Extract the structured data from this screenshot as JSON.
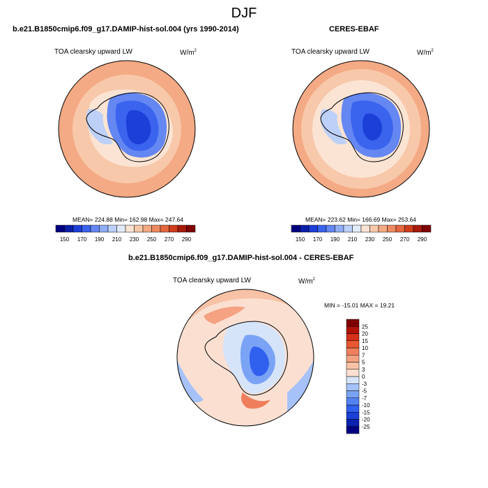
{
  "figure": {
    "title": "DJF"
  },
  "chart_data": [
    {
      "type": "heatmap",
      "title": "b.e21.B1850cmip6.f09_g17.DAMIP-hist-sol.004 (yrs 1990-2014)",
      "variable": "TOA clearsky upward LW",
      "units": "W/m",
      "units_sup": "2",
      "projection": "south-polar-stereographic",
      "stats": "MEAN= 224.88  Min= 162.98  Max= 247.64",
      "mean": 224.88,
      "min": 162.98,
      "max": 247.64,
      "colorbar": {
        "orientation": "horizontal",
        "levels": [
          150,
          160,
          170,
          180,
          190,
          200,
          210,
          220,
          230,
          240,
          250,
          260,
          270,
          280,
          290
        ],
        "tick_labels": [
          "150",
          "170",
          "190",
          "210",
          "230",
          "250",
          "270",
          "290"
        ],
        "colors": [
          "#00007f",
          "#0a1fa8",
          "#1c3fd8",
          "#3a63ee",
          "#6487f2",
          "#90aef6",
          "#bcd0f8",
          "#e2ebf8",
          "#fbe4d4",
          "#f8c8aa",
          "#f4aa84",
          "#ee8a62",
          "#e4673f",
          "#cf3d1c",
          "#a81a0a",
          "#7f0000"
        ]
      }
    },
    {
      "type": "heatmap",
      "title": "CERES-EBAF",
      "variable": "TOA clearsky upward LW",
      "units": "W/m",
      "units_sup": "2",
      "projection": "south-polar-stereographic",
      "stats": "MEAN= 223.62  Min= 166.69  Max= 253.64",
      "mean": 223.62,
      "min": 166.69,
      "max": 253.64,
      "colorbar": {
        "orientation": "horizontal",
        "levels": [
          150,
          160,
          170,
          180,
          190,
          200,
          210,
          220,
          230,
          240,
          250,
          260,
          270,
          280,
          290
        ],
        "tick_labels": [
          "150",
          "170",
          "190",
          "210",
          "230",
          "250",
          "270",
          "290"
        ],
        "colors": [
          "#00007f",
          "#0a1fa8",
          "#1c3fd8",
          "#3a63ee",
          "#6487f2",
          "#90aef6",
          "#bcd0f8",
          "#e2ebf8",
          "#fbe4d4",
          "#f8c8aa",
          "#f4aa84",
          "#ee8a62",
          "#e4673f",
          "#cf3d1c",
          "#a81a0a",
          "#7f0000"
        ]
      }
    },
    {
      "type": "heatmap",
      "title": "b.e21.B1850cmip6.f09_g17.DAMIP-hist-sol.004 - CERES-EBAF",
      "variable": "TOA clearsky upward LW",
      "units": "W/m",
      "units_sup": "2",
      "projection": "south-polar-stereographic",
      "stats": "MIN = -15.01  MAX =  19.21",
      "min": -15.01,
      "max": 19.21,
      "colorbar": {
        "orientation": "vertical",
        "levels": [
          -25,
          -20,
          -15,
          -10,
          -7,
          -5,
          -3,
          0,
          3,
          5,
          7,
          10,
          15,
          20,
          25
        ],
        "tick_labels": [
          "-25",
          "-20",
          "-15",
          "-10",
          "-7",
          "-5",
          "-3",
          "0",
          "3",
          "5",
          "7",
          "10",
          "15",
          "20",
          "25"
        ],
        "colors": [
          "#000080",
          "#0a22b0",
          "#1a40d8",
          "#3060ee",
          "#5382f2",
          "#7aa3f5",
          "#a6c2f8",
          "#d6e4fa",
          "#fbe0d2",
          "#f8c2a6",
          "#f4a282",
          "#ef7f5c",
          "#e65732",
          "#d4301a",
          "#b01208",
          "#7f0000"
        ]
      }
    }
  ]
}
